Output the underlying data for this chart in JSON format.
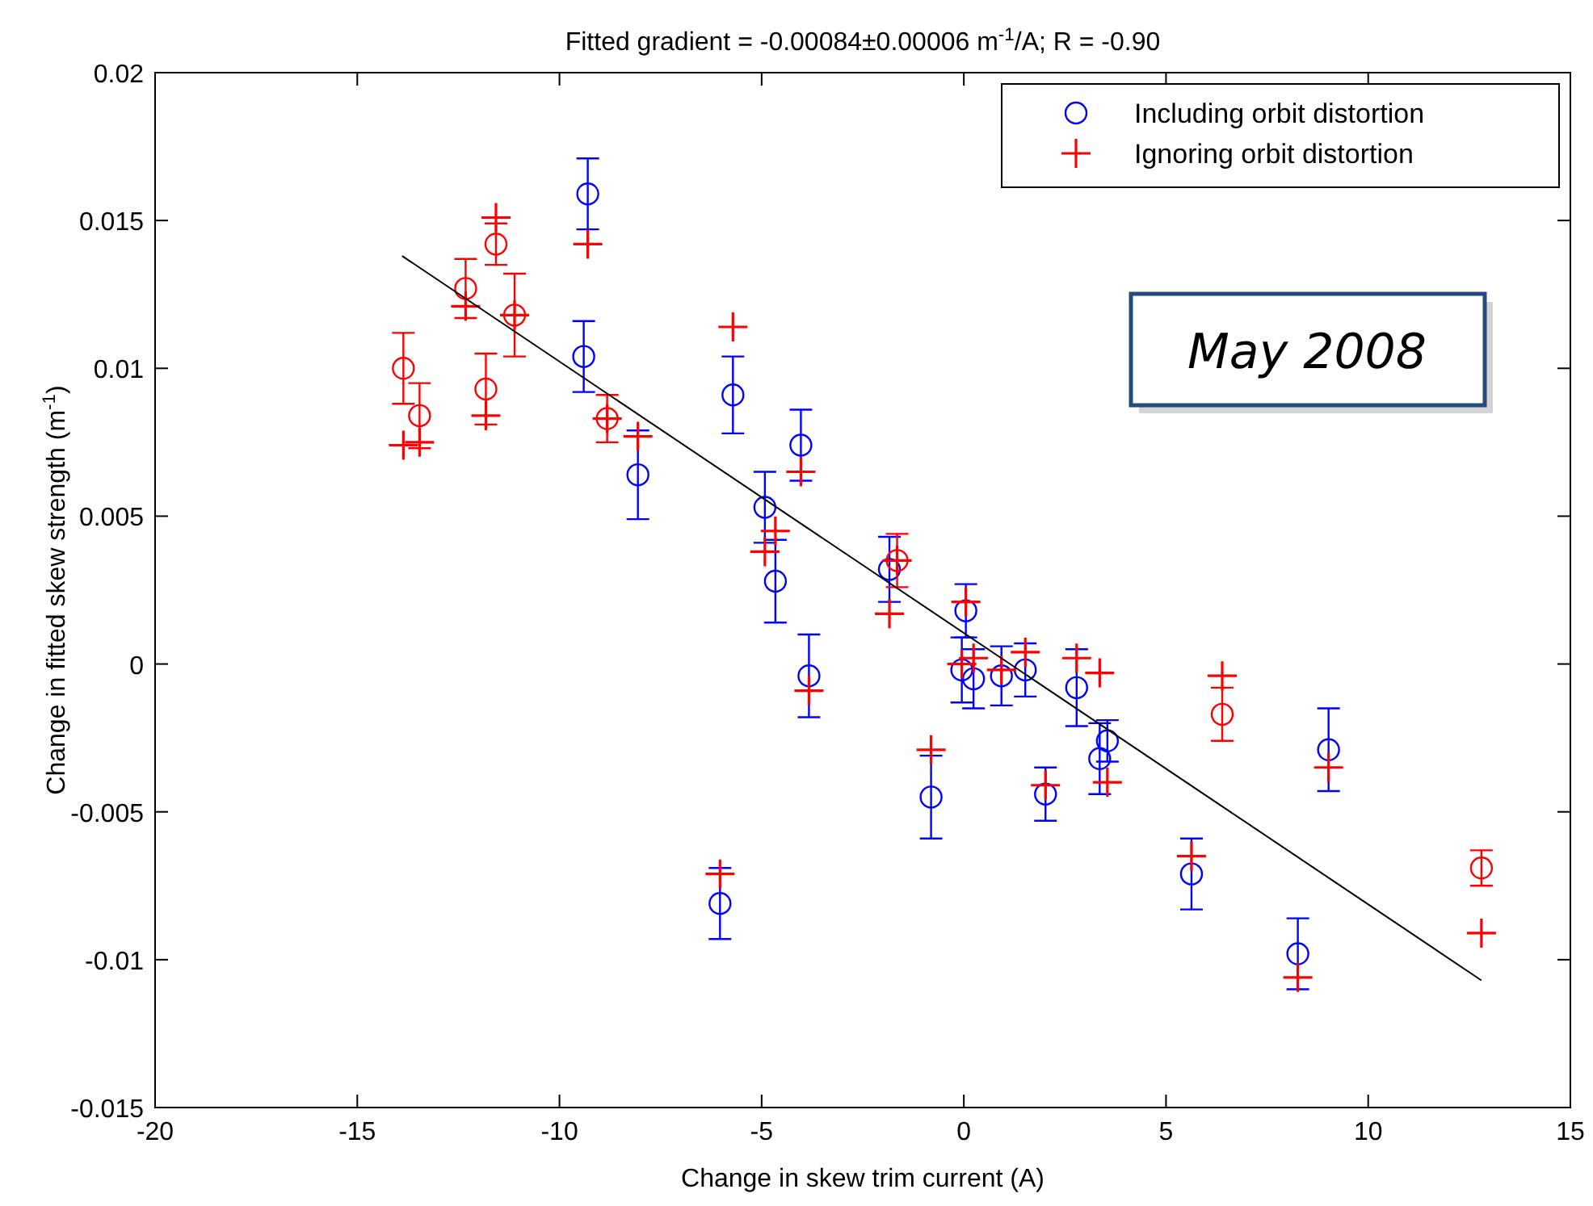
{
  "chart_data": {
    "type": "scatter",
    "title": "Fitted gradient = -0.00084±0.00006 m$^{-1}$/A; R = -0.90",
    "xlabel": "Change in skew trim current (A)",
    "ylabel": "Change in fitted skew strength (m$^{-1}$)",
    "x": [
      -13.86,
      -13.46,
      -12.32,
      -11.57,
      -11.11,
      -11.82,
      -9.3,
      -9.4,
      -8.82,
      -8.06,
      -5.71,
      -4.92,
      -4.66,
      -4.03,
      -3.83,
      -1.84,
      -1.65,
      0.05,
      -0.05,
      0.24,
      0.93,
      1.52,
      2.79,
      3.36,
      3.55,
      6.39,
      -0.81,
      2.02,
      -6.03,
      9.02,
      5.63,
      8.26,
      12.8
    ],
    "series": [
      {
        "name": "Including orbit distortion",
        "marker": "circle",
        "color": "#0000ff",
        "colors": [
          "#ff0000",
          "#ff0000",
          "#ff0000",
          "#ff0000",
          "#ff0000",
          "#ff0000",
          "#0000ff",
          "#0000ff",
          "#ff0000",
          "#0000ff",
          "#0000ff",
          "#0000ff",
          "#0000ff",
          "#0000ff",
          "#0000ff",
          "#0000ff",
          "#ff0000",
          "#0000ff",
          "#0000ff",
          "#0000ff",
          "#0000ff",
          "#0000ff",
          "#0000ff",
          "#0000ff",
          "#0000ff",
          "#ff0000",
          "#0000ff",
          "#0000ff",
          "#0000ff",
          "#0000ff",
          "#0000ff",
          "#0000ff",
          "#ff0000"
        ],
        "values": [
          0.01,
          0.0084,
          0.0127,
          0.0142,
          0.0118,
          0.0093,
          0.0159,
          0.0104,
          0.0083,
          0.0064,
          0.0091,
          0.0053,
          0.0028,
          0.0074,
          -0.0004,
          0.0032,
          0.0035,
          0.0018,
          -0.0002,
          -0.0005,
          -0.0004,
          -0.0002,
          -0.0008,
          -0.0032,
          -0.0026,
          -0.0017,
          -0.0045,
          -0.0044,
          -0.0081,
          -0.0029,
          -0.0071,
          -0.0098,
          -0.0069
        ],
        "errors": [
          0.0012,
          0.0011,
          0.001,
          0.0007,
          0.0014,
          0.0012,
          0.0012,
          0.0012,
          0.0008,
          0.0015,
          0.0013,
          0.0012,
          0.0014,
          0.0012,
          0.0014,
          0.0011,
          0.0009,
          0.0009,
          0.0011,
          0.001,
          0.001,
          0.0009,
          0.0013,
          0.0012,
          0.0007,
          0.0009,
          0.0014,
          0.0009,
          0.0012,
          0.0014,
          0.0012,
          0.0012,
          0.0006
        ]
      },
      {
        "name": "Ignoring orbit distortion",
        "marker": "cross",
        "color": "#ff0000",
        "values": [
          0.0074,
          0.0075,
          0.0121,
          0.0151,
          0.0118,
          0.0084,
          0.0142,
          null,
          0.0083,
          0.0077,
          0.0114,
          0.0038,
          0.0045,
          0.0065,
          -0.0009,
          0.0017,
          0.0035,
          0.0021,
          0.0,
          0.0002,
          -0.0002,
          0.0004,
          0.0002,
          -0.0003,
          -0.004,
          -0.0004,
          -0.0029,
          -0.0041,
          -0.0071,
          -0.0035,
          -0.0065,
          -0.0106,
          -0.0091
        ]
      },
      {
        "type": "line",
        "color": "#000000",
        "x": [
          -13.89,
          12.8
        ],
        "values": [
          0.0138,
          -0.0107
        ]
      }
    ],
    "xlim": [
      -20,
      15
    ],
    "xticks": [
      -20,
      -15,
      -10,
      -5,
      0,
      5,
      10,
      15
    ],
    "ylim": [
      -0.015,
      0.02
    ],
    "yticks": [
      -0.015,
      -0.01,
      -0.005,
      0,
      0.005,
      0.01,
      0.015,
      0.02
    ],
    "legend": "top right",
    "annotations": [
      "May 2008"
    ]
  }
}
